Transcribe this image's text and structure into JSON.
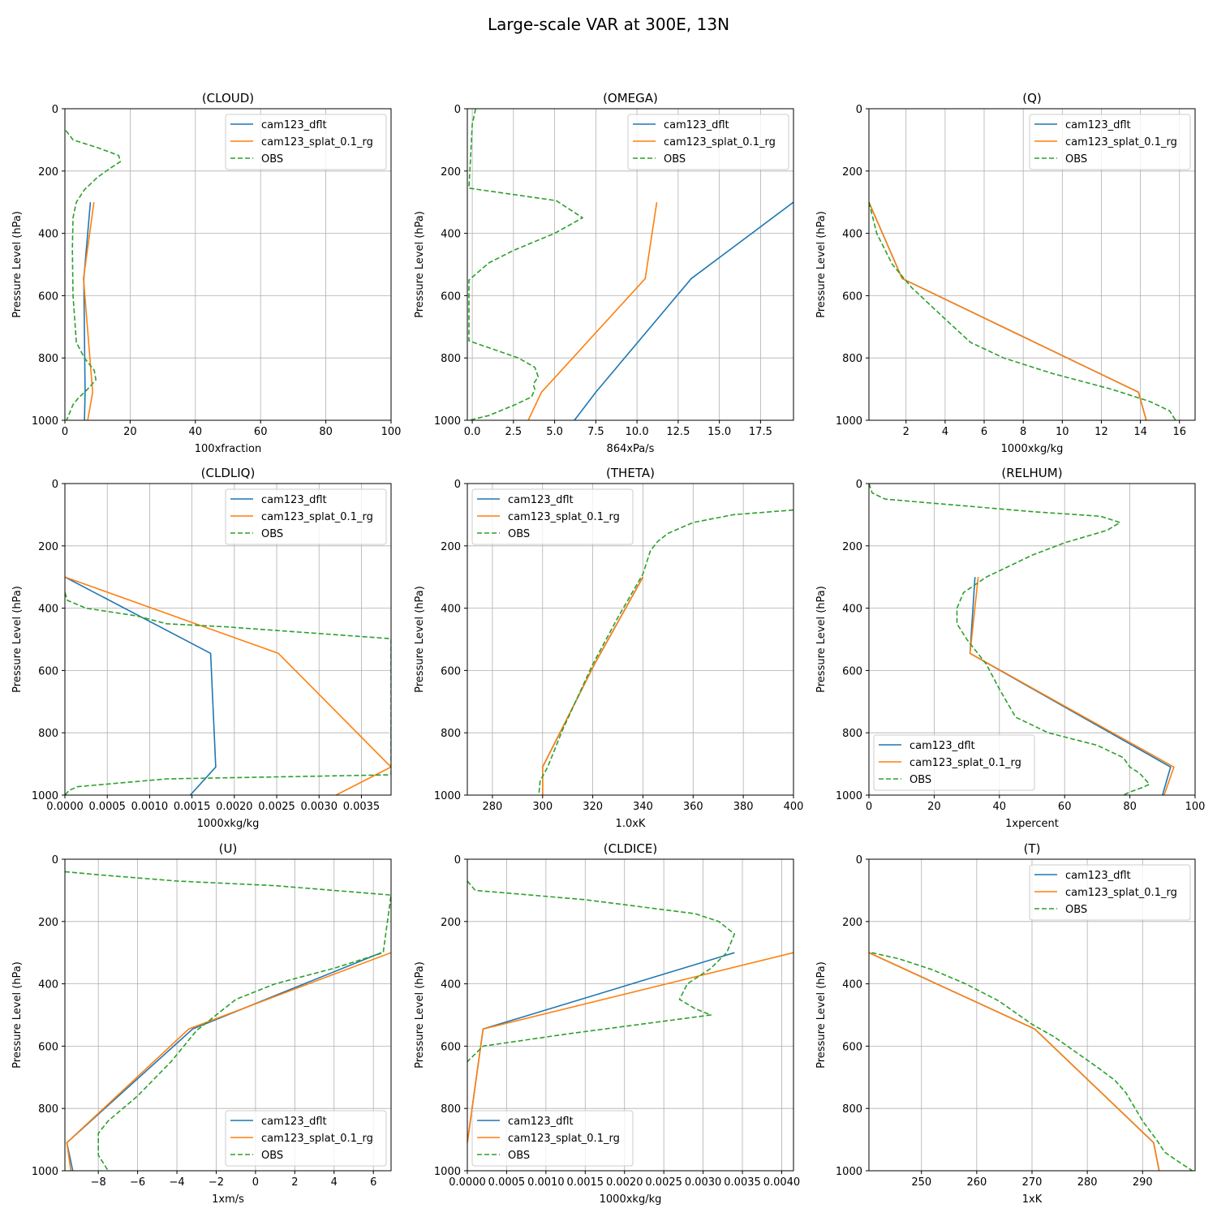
{
  "figure": {
    "title": "Large-scale VAR at 300E, 13N"
  },
  "series_style": [
    {
      "name": "cam123_dflt",
      "color": "#1f77b4",
      "dash": "none"
    },
    {
      "name": "cam123_splat_0.1_rg",
      "color": "#ff7f0e",
      "dash": "none"
    },
    {
      "name": "OBS",
      "color": "#2ca02c",
      "dash": "6,3"
    }
  ],
  "chart_data": [
    {
      "type": "line",
      "title": "(CLOUD)",
      "xlabel": "100xfraction",
      "ylabel": "Pressure Level (hPa)",
      "xlim": [
        0,
        100
      ],
      "ylim": [
        1000,
        0
      ],
      "xticks": [
        0,
        20,
        40,
        60,
        80,
        100
      ],
      "xtick_labels": [
        "0",
        "20",
        "40",
        "60",
        "80",
        "100"
      ],
      "yticks": [
        0,
        200,
        400,
        600,
        800,
        1000
      ],
      "ytick_labels": [
        "0",
        "200",
        "400",
        "600",
        "800",
        "1000"
      ],
      "legend": "upper right",
      "series": [
        {
          "name": "cam123_dflt",
          "x": [
            7.8,
            5.8,
            6.2,
            6.0
          ],
          "y": [
            300,
            545,
            910,
            1000
          ]
        },
        {
          "name": "cam123_splat_0.1_rg",
          "x": [
            8.9,
            5.7,
            8.5,
            7.0
          ],
          "y": [
            300,
            545,
            910,
            1000
          ]
        },
        {
          "name": "OBS",
          "x": [
            0.3,
            2.5,
            10,
            16.5,
            17,
            14,
            10,
            6,
            3.5,
            2.5,
            2.3,
            2.5,
            3.5,
            6,
            9,
            9.5,
            7,
            4,
            2.5,
            0.5
          ],
          "y": [
            70,
            100,
            125,
            150,
            170,
            190,
            220,
            260,
            300,
            350,
            450,
            600,
            750,
            800,
            840,
            870,
            900,
            930,
            950,
            1000
          ]
        }
      ]
    },
    {
      "type": "line",
      "title": "(OMEGA)",
      "xlabel": "864xPa/s",
      "ylabel": "Pressure Level (hPa)",
      "xlim": [
        -0.3,
        19.5
      ],
      "ylim": [
        1000,
        0
      ],
      "xticks": [
        0,
        2.5,
        5,
        7.5,
        10,
        12.5,
        15,
        17.5
      ],
      "xtick_labels": [
        "0.0",
        "2.5",
        "5.0",
        "7.5",
        "10.0",
        "12.5",
        "15.0",
        "17.5"
      ],
      "yticks": [
        0,
        200,
        400,
        600,
        800,
        1000
      ],
      "ytick_labels": [
        "0",
        "200",
        "400",
        "600",
        "800",
        "1000"
      ],
      "legend": "upper right",
      "series": [
        {
          "name": "cam123_dflt",
          "x": [
            19.5,
            13.3,
            7.5,
            6.2
          ],
          "y": [
            300,
            545,
            910,
            1000
          ]
        },
        {
          "name": "cam123_splat_0.1_rg",
          "x": [
            11.2,
            10.5,
            4.2,
            3.4
          ],
          "y": [
            300,
            545,
            910,
            1000
          ]
        },
        {
          "name": "OBS",
          "x": [
            0.2,
            0.0,
            -0.2,
            5.1,
            6.7,
            5.0,
            2.5,
            1.0,
            -0.2,
            -0.2,
            2.8,
            3.8,
            4.0,
            3.7,
            3.8,
            3.6,
            2.6,
            1.0,
            -0.2
          ],
          "y": [
            0,
            50,
            255,
            295,
            350,
            400,
            455,
            495,
            550,
            745,
            800,
            830,
            860,
            885,
            900,
            925,
            950,
            985,
            1000
          ]
        }
      ]
    },
    {
      "type": "line",
      "title": "(Q)",
      "xlabel": "1000xkg/kg",
      "ylabel": "Pressure Level (hPa)",
      "xlim": [
        0.1,
        16.8
      ],
      "ylim": [
        1000,
        0
      ],
      "xticks": [
        2,
        4,
        6,
        8,
        10,
        12,
        14,
        16
      ],
      "xtick_labels": [
        "2",
        "4",
        "6",
        "8",
        "10",
        "12",
        "14",
        "16"
      ],
      "yticks": [
        0,
        200,
        400,
        600,
        800,
        1000
      ],
      "ytick_labels": [
        "0",
        "200",
        "400",
        "600",
        "800",
        "1000"
      ],
      "legend": "upper right",
      "series": [
        {
          "name": "cam123_dflt",
          "x": [
            0.1,
            1.8,
            13.9,
            14.3
          ],
          "y": [
            300,
            545,
            910,
            1000
          ]
        },
        {
          "name": "cam123_splat_0.1_rg",
          "x": [
            0.1,
            1.8,
            13.9,
            14.3
          ],
          "y": [
            300,
            545,
            910,
            1000
          ]
        },
        {
          "name": "OBS",
          "x": [
            0.1,
            0.5,
            1.3,
            2.3,
            4.0,
            5.3,
            7.0,
            9.5,
            12.5,
            14.5,
            15.5,
            15.8
          ],
          "y": [
            300,
            400,
            500,
            575,
            675,
            750,
            800,
            850,
            900,
            940,
            970,
            1000
          ]
        }
      ]
    },
    {
      "type": "line",
      "title": "(CLDLIQ)",
      "xlabel": "1000xkg/kg",
      "ylabel": "Pressure Level (hPa)",
      "xlim": [
        0,
        0.00385
      ],
      "ylim": [
        1000,
        0
      ],
      "xticks": [
        0,
        0.0005,
        0.001,
        0.0015,
        0.002,
        0.0025,
        0.003,
        0.0035
      ],
      "xtick_labels": [
        "0.0000",
        "0.0005",
        "0.0010",
        "0.0015",
        "0.0020",
        "0.0025",
        "0.0030",
        "0.0035"
      ],
      "yticks": [
        0,
        200,
        400,
        600,
        800,
        1000
      ],
      "ytick_labels": [
        "0",
        "200",
        "400",
        "600",
        "800",
        "1000"
      ],
      "legend": "upper right",
      "series": [
        {
          "name": "cam123_dflt",
          "x": [
            0.0,
            0.00172,
            0.00178,
            0.00148
          ],
          "y": [
            300,
            545,
            910,
            1000
          ]
        },
        {
          "name": "cam123_splat_0.1_rg",
          "x": [
            0.0,
            0.00252,
            0.00385,
            0.0032
          ],
          "y": [
            300,
            545,
            910,
            1000
          ]
        },
        {
          "name": "OBS",
          "x": [
            0.0,
            3e-05,
            0.00025,
            0.00085,
            0.0012,
            0.0019,
            0.00385,
            0.00385,
            0.0012,
            0.00015,
            5e-05,
            0.0
          ],
          "y": [
            350,
            375,
            400,
            425,
            450,
            460,
            498,
            935,
            948,
            973,
            985,
            1000
          ]
        }
      ]
    },
    {
      "type": "line",
      "title": "(THETA)",
      "xlabel": "1.0xK",
      "ylabel": "Pressure Level (hPa)",
      "xlim": [
        270,
        400
      ],
      "ylim": [
        1000,
        0
      ],
      "xticks": [
        280,
        300,
        320,
        340,
        360,
        380,
        400
      ],
      "xtick_labels": [
        "280",
        "300",
        "320",
        "340",
        "360",
        "380",
        "400"
      ],
      "yticks": [
        0,
        200,
        400,
        600,
        800,
        1000
      ],
      "ytick_labels": [
        "0",
        "200",
        "400",
        "600",
        "800",
        "1000"
      ],
      "legend": "upper left",
      "series": [
        {
          "name": "cam123_dflt",
          "x": [
            340,
            321,
            300,
            300
          ],
          "y": [
            300,
            575,
            910,
            1000
          ]
        },
        {
          "name": "cam123_splat_0.1_rg",
          "x": [
            340,
            321,
            300,
            300
          ],
          "y": [
            300,
            575,
            910,
            1000
          ]
        },
        {
          "name": "OBS",
          "x": [
            400,
            376,
            360,
            350,
            346,
            343,
            340,
            330,
            320,
            308,
            302,
            299,
            298.5
          ],
          "y": [
            85,
            100,
            125,
            160,
            185,
            215,
            290,
            430,
            580,
            790,
            910,
            955,
            1000
          ]
        }
      ]
    },
    {
      "type": "line",
      "title": "(RELHUM)",
      "xlabel": "1xpercent",
      "ylabel": "Pressure Level (hPa)",
      "xlim": [
        0,
        100
      ],
      "ylim": [
        1000,
        0
      ],
      "xticks": [
        0,
        20,
        40,
        60,
        80,
        100
      ],
      "xtick_labels": [
        "0",
        "20",
        "40",
        "60",
        "80",
        "100"
      ],
      "yticks": [
        0,
        200,
        400,
        600,
        800,
        1000
      ],
      "ytick_labels": [
        "0",
        "200",
        "400",
        "600",
        "800",
        "1000"
      ],
      "legend": "lower left",
      "series": [
        {
          "name": "cam123_dflt",
          "x": [
            32.5,
            31,
            92.5,
            90
          ],
          "y": [
            300,
            545,
            910,
            1000
          ]
        },
        {
          "name": "cam123_splat_0.1_rg",
          "x": [
            33.5,
            31,
            93.5,
            90.5
          ],
          "y": [
            300,
            545,
            910,
            1000
          ]
        },
        {
          "name": "OBS",
          "x": [
            0,
            1,
            5,
            50,
            71,
            77,
            73,
            60,
            50,
            43,
            36,
            29,
            27,
            27,
            30,
            33,
            36,
            38,
            40,
            45,
            55,
            70,
            78,
            80,
            83,
            86,
            84,
            80,
            78
          ],
          "y": [
            0,
            30,
            50,
            90,
            105,
            125,
            150,
            190,
            230,
            265,
            300,
            350,
            400,
            450,
            500,
            540,
            580,
            620,
            660,
            750,
            800,
            840,
            880,
            910,
            930,
            965,
            975,
            990,
            1000
          ]
        }
      ]
    },
    {
      "type": "line",
      "title": "(U)",
      "xlabel": "1xm/s",
      "ylabel": "Pressure Level (hPa)",
      "xlim": [
        -9.7,
        6.9
      ],
      "ylim": [
        1000,
        0
      ],
      "xticks": [
        -8,
        -6,
        -4,
        -2,
        0,
        2,
        4,
        6
      ],
      "xtick_labels": [
        "−8",
        "−6",
        "−4",
        "−2",
        "0",
        "2",
        "4",
        "6"
      ],
      "yticks": [
        0,
        200,
        400,
        600,
        800,
        1000
      ],
      "ytick_labels": [
        "0",
        "200",
        "400",
        "600",
        "800",
        "1000"
      ],
      "legend": "lower right",
      "series": [
        {
          "name": "cam123_dflt",
          "x": [
            6.4,
            -3.2,
            -9.6,
            -9.3
          ],
          "y": [
            300,
            545,
            910,
            1000
          ]
        },
        {
          "name": "cam123_splat_0.1_rg",
          "x": [
            6.9,
            -3.4,
            -9.6,
            -9.4
          ],
          "y": [
            300,
            545,
            910,
            1000
          ]
        },
        {
          "name": "OBS",
          "x": [
            -9.7,
            -8.0,
            -4.0,
            1.0,
            6.9,
            6.5,
            4.0,
            1.0,
            -1.0,
            -2.0,
            -3.0,
            -4.3,
            -6.0,
            -7.5,
            -8.0,
            -8.0,
            -7.5
          ],
          "y": [
            40,
            50,
            70,
            85,
            115,
            300,
            350,
            400,
            450,
            500,
            550,
            650,
            760,
            840,
            880,
            950,
            1000
          ]
        }
      ]
    },
    {
      "type": "line",
      "title": "(CLDICE)",
      "xlabel": "1000xkg/kg",
      "ylabel": "Pressure Level (hPa)",
      "xlim": [
        0,
        0.00415
      ],
      "ylim": [
        1000,
        0
      ],
      "xticks": [
        0,
        0.0005,
        0.001,
        0.0015,
        0.002,
        0.0025,
        0.003,
        0.0035,
        0.004
      ],
      "xtick_labels": [
        "0.0000",
        "0.0005",
        "0.0010",
        "0.0015",
        "0.0020",
        "0.0025",
        "0.0030",
        "0.0035",
        "0.0040"
      ],
      "yticks": [
        0,
        200,
        400,
        600,
        800,
        1000
      ],
      "ytick_labels": [
        "0",
        "200",
        "400",
        "600",
        "800",
        "1000"
      ],
      "legend": "lower left",
      "series": [
        {
          "name": "cam123_dflt",
          "x": [
            0.0034,
            0.0002,
            0.0
          ],
          "y": [
            300,
            545,
            910
          ]
        },
        {
          "name": "cam123_splat_0.1_rg",
          "x": [
            0.00415,
            0.0002,
            0.0
          ],
          "y": [
            300,
            545,
            910
          ]
        },
        {
          "name": "OBS",
          "x": [
            0.0,
            0.0001,
            0.0015,
            0.0029,
            0.0032,
            0.0034,
            0.0033,
            0.0031,
            0.0028,
            0.0027,
            0.0029,
            0.0031,
            0.0013,
            0.0002,
            0.0
          ],
          "y": [
            70,
            100,
            130,
            175,
            200,
            240,
            300,
            350,
            400,
            450,
            480,
            500,
            560,
            600,
            650
          ]
        }
      ]
    },
    {
      "type": "line",
      "title": "(T)",
      "xlabel": "1xK",
      "ylabel": "Pressure Level (hPa)",
      "xlim": [
        240.5,
        299.5
      ],
      "ylim": [
        1000,
        0
      ],
      "xticks": [
        250,
        260,
        270,
        280,
        290
      ],
      "xtick_labels": [
        "250",
        "260",
        "270",
        "280",
        "290"
      ],
      "yticks": [
        0,
        200,
        400,
        600,
        800,
        1000
      ],
      "ytick_labels": [
        "0",
        "200",
        "400",
        "600",
        "800",
        "1000"
      ],
      "legend": "upper right",
      "series": [
        {
          "name": "cam123_dflt",
          "x": [
            240.5,
            270.5,
            292.0,
            293.0
          ],
          "y": [
            300,
            545,
            910,
            1000
          ]
        },
        {
          "name": "cam123_splat_0.1_rg",
          "x": [
            240.5,
            270.5,
            292.0,
            293.0
          ],
          "y": [
            300,
            545,
            910,
            1000
          ]
        },
        {
          "name": "OBS",
          "x": [
            241,
            246,
            252,
            258,
            264,
            270,
            274,
            278,
            282,
            285,
            287,
            290,
            292.5,
            294,
            296,
            299
          ],
          "y": [
            300,
            320,
            355,
            400,
            455,
            530,
            570,
            620,
            670,
            710,
            750,
            840,
            900,
            940,
            965,
            1000
          ]
        }
      ]
    }
  ]
}
